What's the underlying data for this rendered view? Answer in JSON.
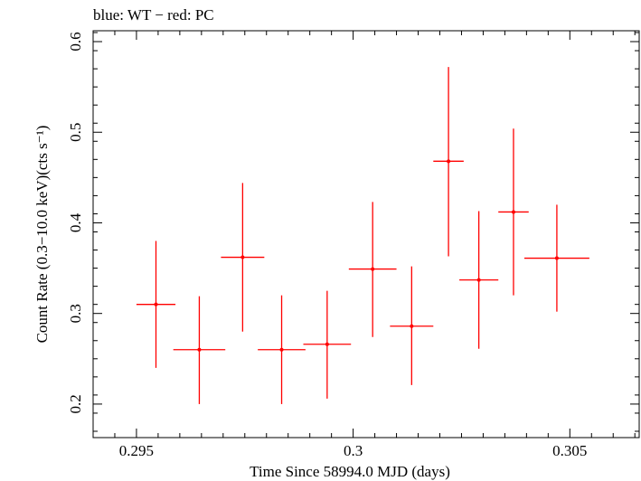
{
  "chart_data": {
    "type": "scatter",
    "title": "blue: WT − red: PC",
    "xlabel": "Time Since 58994.0 MJD (days)",
    "ylabel": "Count Rate (0.3−10.0 keV)(cts s⁻¹)",
    "xlim": [
      0.294,
      0.3066
    ],
    "ylim": [
      0.163,
      0.612
    ],
    "xticks": [
      0.295,
      0.3,
      0.305
    ],
    "xtick_labels": [
      "0.295",
      "0.3",
      "0.305"
    ],
    "yticks": [
      0.2,
      0.3,
      0.4,
      0.5,
      0.6
    ],
    "ytick_labels": [
      "0.2",
      "0.3",
      "0.4",
      "0.5",
      "0.6"
    ],
    "grid": false,
    "series": [
      {
        "color": "#ff0000",
        "points": [
          {
            "x": 0.29545,
            "y": 0.31,
            "xerr": 0.00045,
            "ylo": 0.24,
            "yhi": 0.38
          },
          {
            "x": 0.29645,
            "y": 0.26,
            "xerr": 0.0006,
            "ylo": 0.2,
            "yhi": 0.319
          },
          {
            "x": 0.29745,
            "y": 0.362,
            "xerr": 0.0005,
            "ylo": 0.28,
            "yhi": 0.444
          },
          {
            "x": 0.29835,
            "y": 0.26,
            "xerr": 0.00055,
            "ylo": 0.2,
            "yhi": 0.32
          },
          {
            "x": 0.2994,
            "y": 0.266,
            "xerr": 0.00055,
            "ylo": 0.206,
            "yhi": 0.325
          },
          {
            "x": 0.30045,
            "y": 0.349,
            "xerr": 0.00055,
            "ylo": 0.274,
            "yhi": 0.423
          },
          {
            "x": 0.30135,
            "y": 0.286,
            "xerr": 0.0005,
            "ylo": 0.221,
            "yhi": 0.352
          },
          {
            "x": 0.3022,
            "y": 0.468,
            "xerr": 0.00035,
            "ylo": 0.363,
            "yhi": 0.572
          },
          {
            "x": 0.3029,
            "y": 0.337,
            "xerr": 0.00045,
            "ylo": 0.261,
            "yhi": 0.413
          },
          {
            "x": 0.3037,
            "y": 0.412,
            "xerr": 0.00035,
            "ylo": 0.32,
            "yhi": 0.504
          },
          {
            "x": 0.3047,
            "y": 0.361,
            "xerr": 0.00075,
            "ylo": 0.302,
            "yhi": 0.42
          }
        ]
      }
    ]
  }
}
